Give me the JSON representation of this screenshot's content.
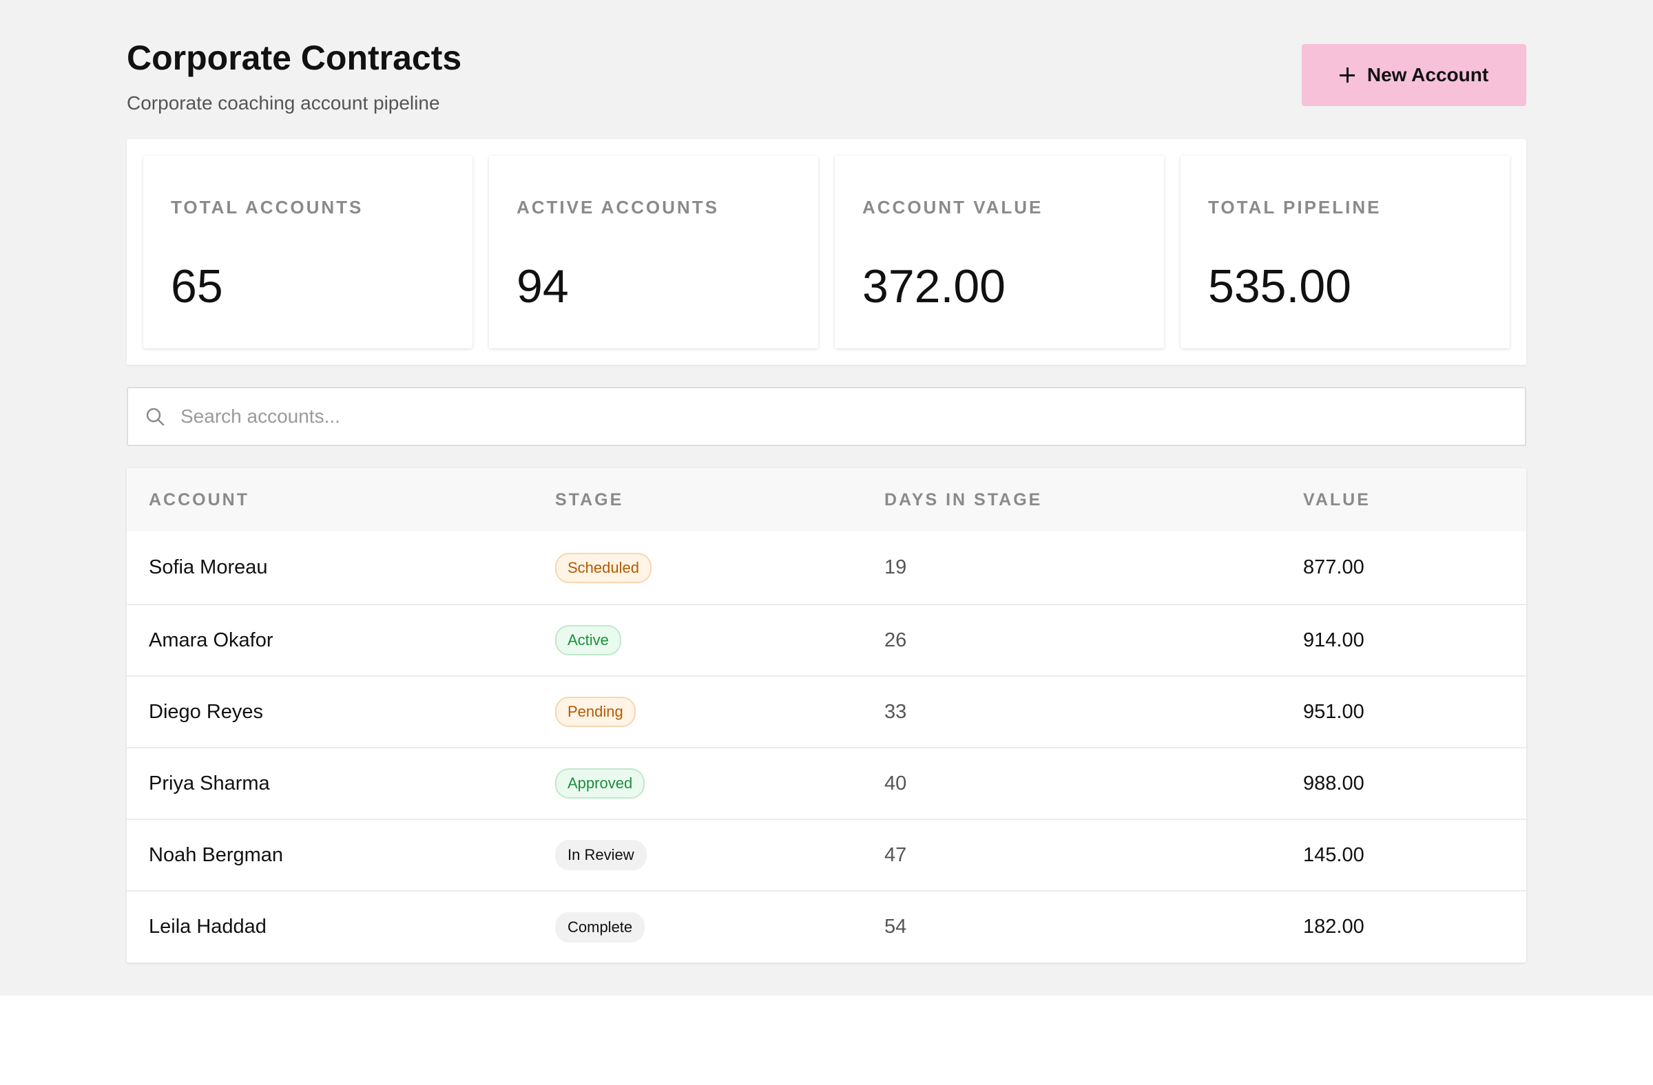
{
  "header": {
    "title": "Corporate Contracts",
    "subtitle": "Corporate coaching account pipeline",
    "new_button_label": "New Account"
  },
  "stats": [
    {
      "label": "TOTAL ACCOUNTS",
      "value": "65"
    },
    {
      "label": "ACTIVE ACCOUNTS",
      "value": "94"
    },
    {
      "label": "ACCOUNT VALUE",
      "value": "372.00"
    },
    {
      "label": "TOTAL PIPELINE",
      "value": "535.00"
    }
  ],
  "search": {
    "placeholder": "Search accounts...",
    "value": ""
  },
  "table": {
    "columns": [
      "ACCOUNT",
      "STAGE",
      "DAYS IN STAGE",
      "VALUE"
    ],
    "rows": [
      {
        "account": "Sofia Moreau",
        "stage": "Scheduled",
        "stage_tone": "warn",
        "days": "19",
        "value": "877.00"
      },
      {
        "account": "Amara Okafor",
        "stage": "Active",
        "stage_tone": "ok",
        "days": "26",
        "value": "914.00"
      },
      {
        "account": "Diego Reyes",
        "stage": "Pending",
        "stage_tone": "warn",
        "days": "33",
        "value": "951.00"
      },
      {
        "account": "Priya Sharma",
        "stage": "Approved",
        "stage_tone": "ok",
        "days": "40",
        "value": "988.00"
      },
      {
        "account": "Noah Bergman",
        "stage": "In Review",
        "stage_tone": "neutral",
        "days": "47",
        "value": "145.00"
      },
      {
        "account": "Leila Haddad",
        "stage": "Complete",
        "stage_tone": "neutral",
        "days": "54",
        "value": "182.00"
      }
    ]
  },
  "colors": {
    "accent_button": "#f6c1d9",
    "badge_warn": "#b35a00",
    "badge_ok": "#1b8f3b",
    "badge_neutral": "#111111"
  },
  "icons": {
    "button_icon": "plus-icon",
    "search_icon": "search-icon"
  }
}
